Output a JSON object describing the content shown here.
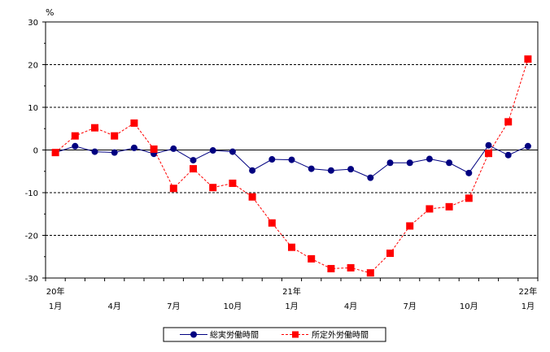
{
  "chart_data": {
    "type": "line",
    "unit_label": "%",
    "ylim": [
      -30,
      30
    ],
    "yticks": [
      30,
      20,
      10,
      0,
      -10,
      -20,
      -30
    ],
    "grid": "horizontal dashed at ±10, ±20; solid at 0",
    "legend_position": "bottom-center",
    "x_tick_labels": [
      {
        "index": 0,
        "line1": "20年",
        "line2": "1月"
      },
      {
        "index": 3,
        "line1": "",
        "line2": "4月"
      },
      {
        "index": 6,
        "line1": "",
        "line2": "7月"
      },
      {
        "index": 9,
        "line1": "",
        "line2": "10月"
      },
      {
        "index": 12,
        "line1": "21年",
        "line2": "1月"
      },
      {
        "index": 15,
        "line1": "",
        "line2": "4月"
      },
      {
        "index": 18,
        "line1": "",
        "line2": "7月"
      },
      {
        "index": 21,
        "line1": "",
        "line2": "10月"
      },
      {
        "index": 24,
        "line1": "22年",
        "line2": "1月"
      }
    ],
    "series": [
      {
        "name": "総実労働時間",
        "color": "#000080",
        "line_style": "solid",
        "marker": "circle",
        "values": [
          -0.6,
          0.9,
          -0.4,
          -0.6,
          0.5,
          -0.9,
          0.3,
          -2.4,
          -0.1,
          -0.4,
          -4.8,
          -2.2,
          -2.3,
          -4.4,
          -4.8,
          -4.5,
          -6.5,
          -3.0,
          -3.0,
          -2.1,
          -3.0,
          -5.4,
          1.1,
          -1.2,
          0.9
        ]
      },
      {
        "name": "所定外労働時間",
        "color": "#ff0000",
        "line_style": "dashed",
        "marker": "square",
        "values": [
          -0.6,
          3.3,
          5.2,
          3.3,
          6.3,
          0.2,
          -9.0,
          -4.4,
          -8.8,
          -7.8,
          -11.0,
          -17.1,
          -22.8,
          -25.5,
          -27.8,
          -27.6,
          -28.8,
          -24.2,
          -17.8,
          -13.8,
          -13.3,
          -11.3,
          -0.8,
          6.6,
          21.3
        ]
      }
    ]
  }
}
